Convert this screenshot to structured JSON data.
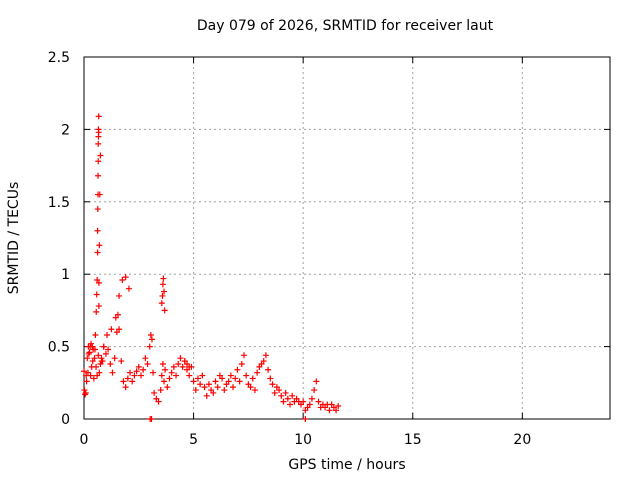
{
  "chart_data": {
    "type": "scatter",
    "title": "Day 079 of 2026, SRMTID for receiver laut",
    "xlabel": "GPS time / hours",
    "ylabel": "SRMTID / TECUs",
    "xlim": [
      0,
      24
    ],
    "ylim": [
      0,
      2.5
    ],
    "xticks": [
      0,
      5,
      10,
      15,
      20
    ],
    "yticks": [
      0,
      0.5,
      1,
      1.5,
      2,
      2.5
    ],
    "ytick_labels": [
      "0",
      "0.5",
      "1",
      "1.5",
      "2",
      "2.5"
    ],
    "grid": true,
    "marker": "+",
    "color": "#ff0000",
    "series": [
      {
        "name": "SRMTID",
        "x": [
          0.0,
          0.05,
          0.1,
          0.15,
          0.2,
          0.25,
          0.3,
          0.35,
          0.4,
          0.45,
          0.5,
          0.55,
          0.6,
          0.65,
          0.7,
          0.75,
          0.8,
          0.85,
          0.9,
          1.0,
          1.1,
          1.2,
          1.3,
          1.4,
          1.5,
          1.55,
          1.6,
          1.7,
          1.8,
          1.9,
          2.0,
          2.1,
          2.2,
          2.3,
          2.4,
          2.5,
          2.6,
          2.7,
          2.8,
          2.9,
          3.0,
          3.05,
          3.1,
          3.15,
          3.2,
          3.3,
          3.4,
          3.5,
          3.55,
          3.6,
          3.65,
          3.7,
          3.8,
          3.9,
          4.0,
          4.1,
          4.2,
          4.3,
          4.4,
          4.5,
          4.6,
          4.7,
          4.8,
          4.9,
          5.0,
          5.1,
          5.2,
          5.3,
          5.4,
          5.5,
          5.6,
          5.7,
          5.8,
          5.9,
          6.0,
          6.1,
          6.2,
          6.3,
          6.4,
          6.5,
          6.6,
          6.7,
          6.8,
          6.9,
          7.0,
          7.1,
          7.2,
          7.3,
          7.4,
          7.5,
          7.6,
          7.7,
          7.8,
          7.9,
          8.0,
          8.1,
          8.2,
          8.3,
          8.4,
          8.5,
          8.6,
          8.7,
          8.8,
          8.9,
          9.0,
          9.1,
          9.2,
          9.3,
          9.4,
          9.5,
          9.6,
          9.7,
          9.8,
          9.9,
          10.0,
          10.1,
          10.2,
          10.3,
          10.4,
          10.5,
          10.6,
          10.7,
          10.8,
          10.9,
          11.0,
          11.1,
          11.2,
          11.3,
          11.4,
          11.5,
          11.6,
          0.02,
          0.08,
          0.12,
          0.18,
          0.22,
          0.28,
          0.32,
          0.38,
          0.42,
          0.48,
          0.52,
          0.56,
          0.58,
          0.6,
          0.62,
          0.62,
          0.63,
          0.64,
          0.64,
          0.65,
          0.65,
          0.66,
          0.66,
          0.67,
          0.67,
          0.68,
          0.68,
          0.7,
          0.72,
          0.75,
          0.8,
          0.9,
          1.05,
          1.25,
          1.45,
          1.6,
          1.75,
          1.9,
          2.05,
          3.55,
          3.58,
          3.6,
          3.62,
          3.65,
          3.68,
          4.6,
          4.7,
          4.8,
          3.02,
          3.08,
          10.1
        ],
        "y": [
          0.33,
          0.17,
          0.3,
          0.42,
          0.5,
          0.46,
          0.3,
          0.36,
          0.4,
          0.28,
          0.48,
          0.36,
          0.3,
          0.44,
          0.32,
          0.38,
          0.42,
          0.4,
          0.5,
          0.45,
          0.48,
          0.38,
          0.32,
          0.42,
          0.6,
          0.72,
          0.62,
          0.4,
          0.26,
          0.22,
          0.28,
          0.32,
          0.26,
          0.3,
          0.33,
          0.36,
          0.3,
          0.34,
          0.42,
          0.38,
          0.5,
          0.58,
          0.55,
          0.32,
          0.18,
          0.14,
          0.12,
          0.2,
          0.3,
          0.38,
          0.26,
          0.34,
          0.22,
          0.28,
          0.32,
          0.36,
          0.3,
          0.38,
          0.42,
          0.36,
          0.4,
          0.34,
          0.3,
          0.36,
          0.26,
          0.2,
          0.28,
          0.24,
          0.3,
          0.22,
          0.16,
          0.24,
          0.2,
          0.18,
          0.26,
          0.22,
          0.3,
          0.28,
          0.2,
          0.24,
          0.26,
          0.3,
          0.22,
          0.28,
          0.34,
          0.26,
          0.38,
          0.44,
          0.3,
          0.24,
          0.22,
          0.28,
          0.2,
          0.32,
          0.36,
          0.38,
          0.4,
          0.44,
          0.34,
          0.28,
          0.24,
          0.18,
          0.22,
          0.2,
          0.16,
          0.12,
          0.18,
          0.14,
          0.1,
          0.16,
          0.12,
          0.14,
          0.12,
          0.1,
          0.12,
          0.06,
          0.08,
          0.1,
          0.14,
          0.2,
          0.26,
          0.12,
          0.08,
          0.1,
          0.08,
          0.1,
          0.06,
          0.1,
          0.08,
          0.06,
          0.09,
          0.2,
          0.18,
          0.26,
          0.32,
          0.45,
          0.5,
          0.52,
          0.5,
          0.48,
          0.42,
          0.58,
          0.74,
          0.86,
          0.96,
          1.15,
          1.3,
          1.45,
          1.55,
          1.68,
          1.78,
          1.9,
          1.95,
          2.0,
          2.09,
          1.98,
          0.78,
          0.94,
          1.2,
          1.55,
          1.82,
          0.4,
          0.5,
          0.58,
          0.62,
          0.7,
          0.85,
          0.96,
          0.98,
          0.9,
          0.8,
          0.85,
          0.93,
          0.97,
          0.88,
          0.75,
          0.4,
          0.38,
          0.36,
          0.0,
          0.0,
          0.0
        ]
      }
    ]
  }
}
